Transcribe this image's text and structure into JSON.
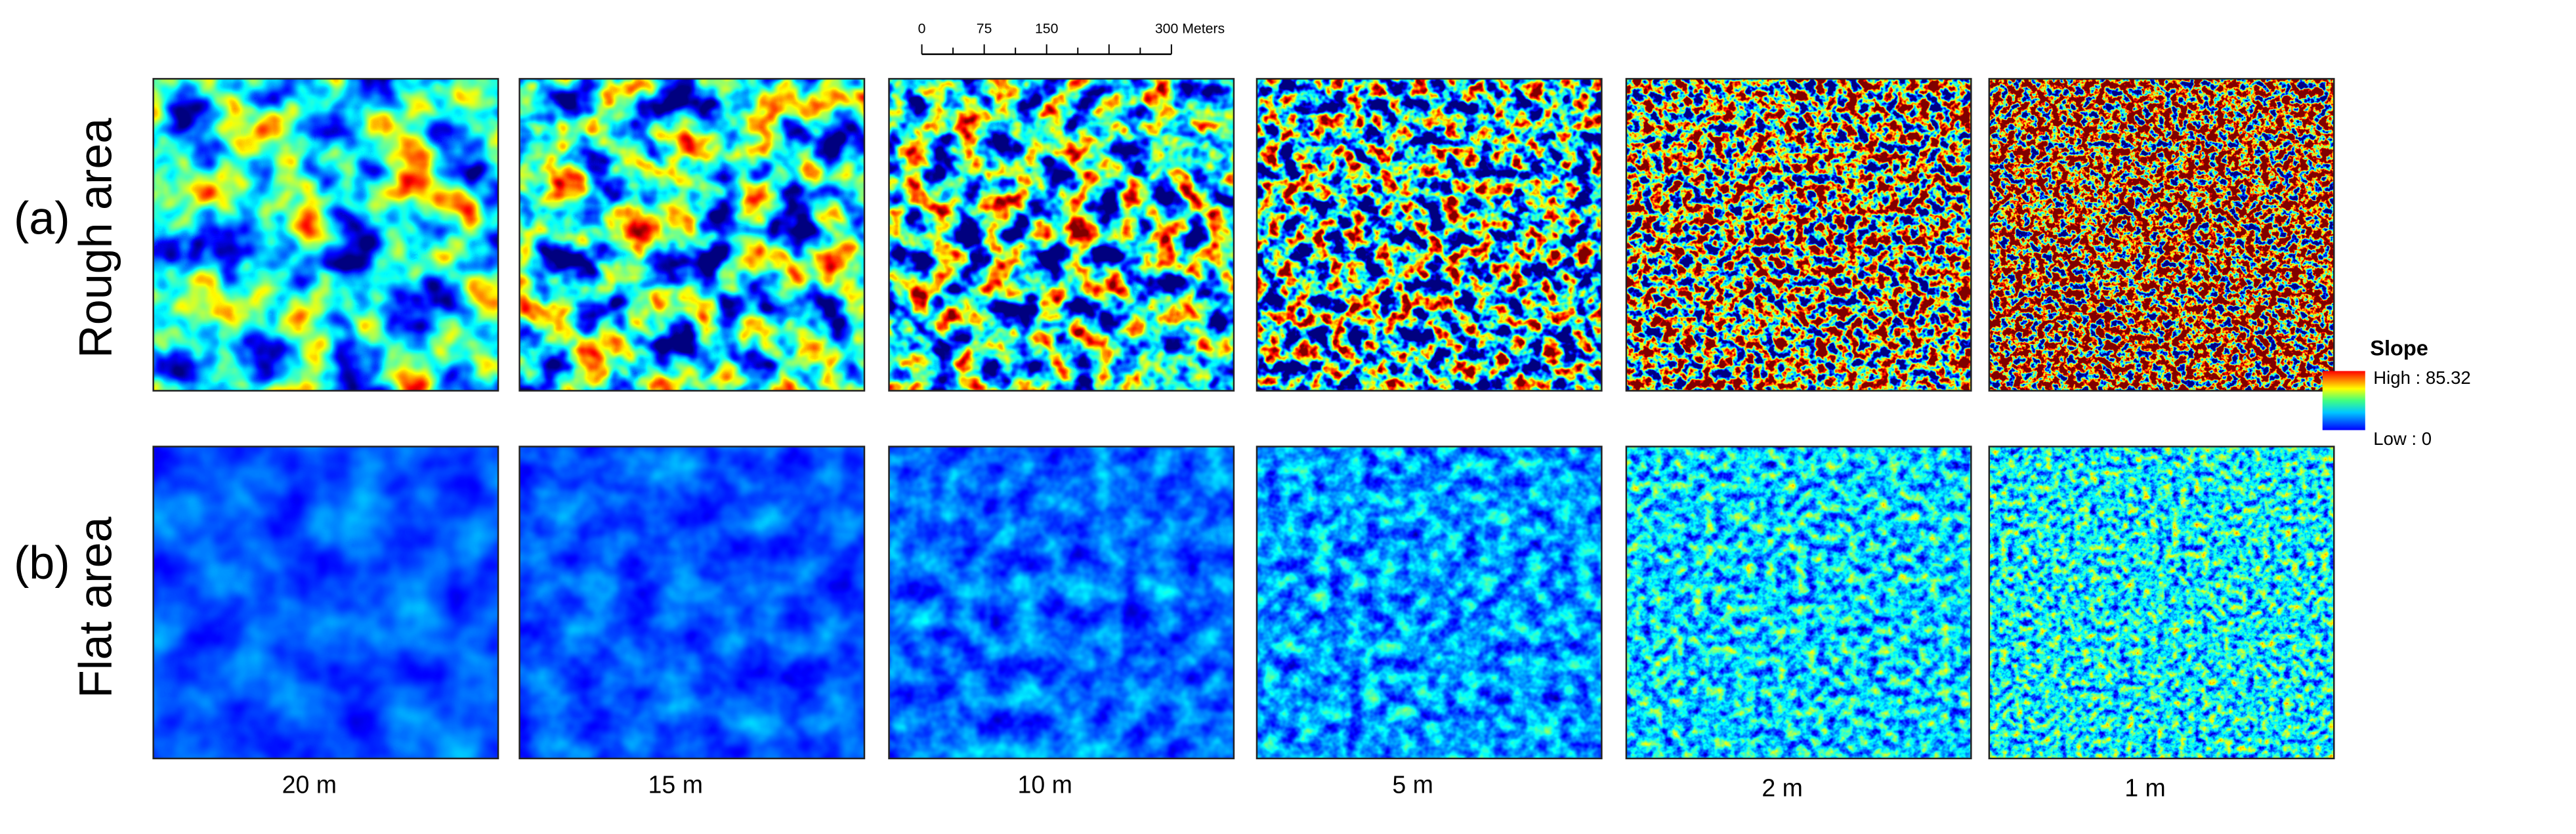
{
  "labels": {
    "row_a_letter": "(a)",
    "row_a": "Rough area",
    "row_b_letter": "(b)",
    "row_b": "Flat area"
  },
  "resolutions": [
    "20 m",
    "15 m",
    "10 m",
    "5 m",
    "2 m",
    "1 m"
  ],
  "scale_bar": {
    "labels": [
      "0",
      "75",
      "150",
      "300 Meters"
    ]
  },
  "legend": {
    "title": "Slope",
    "high": "High : 85.32",
    "low": "Low : 0"
  }
}
